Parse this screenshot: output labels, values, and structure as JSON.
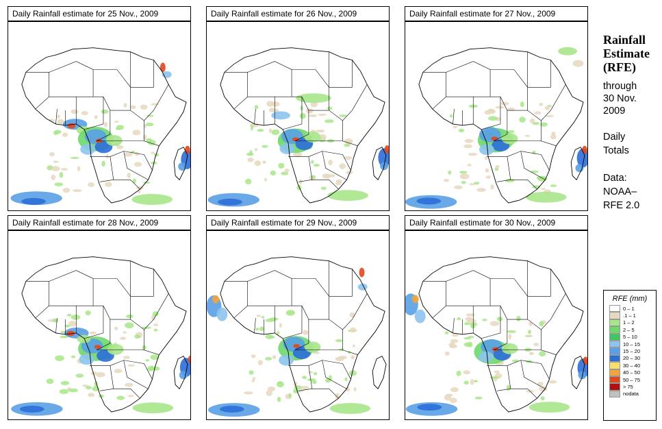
{
  "panels": [
    {
      "title": "Daily Rainfall estimate for  25 Nov., 2009",
      "hot": [
        "sahel-south",
        "congo",
        "madagascar-east",
        "southern-ocean",
        "red-sea"
      ]
    },
    {
      "title": "Daily Rainfall estimate for  26 Nov., 2009",
      "hot": [
        "congo",
        "madagascar-east",
        "southern-ocean",
        "sahel"
      ]
    },
    {
      "title": "Daily Rainfall estimate for  27 Nov., 2009",
      "hot": [
        "congo",
        "madagascar-east",
        "southern-ocean",
        "arabia"
      ]
    },
    {
      "title": "Daily Rainfall estimate for  28 Nov., 2009",
      "hot": [
        "congo",
        "madagascar-east",
        "southern-ocean",
        "sahel-south"
      ]
    },
    {
      "title": "Daily Rainfall estimate for  29 Nov., 2009",
      "hot": [
        "congo",
        "southern-ocean",
        "west-coast",
        "red-sea"
      ]
    },
    {
      "title": "Daily Rainfall estimate for  30 Nov., 2009",
      "hot": [
        "congo",
        "madagascar-east",
        "southern-ocean",
        "west-coast"
      ]
    }
  ],
  "sidebar": {
    "title_lines": [
      "Rainfall",
      "Estimate",
      "(RFE)"
    ],
    "through": "through",
    "date_line1": "30 Nov.",
    "date_line2": "2009",
    "daily": "Daily",
    "totals": "Totals",
    "data_label": "Data:",
    "source1": "NOAA–",
    "source2": "RFE 2.0"
  },
  "legend": {
    "title": "RFE (mm)",
    "entries": [
      {
        "label": "0 – 1",
        "color": "#ffffff"
      },
      {
        "label": ".1 – 1",
        "color": "#e8d8c0"
      },
      {
        "label": "1 – 2",
        "color": "#a8e68a"
      },
      {
        "label": "2 – 5",
        "color": "#6ed86a"
      },
      {
        "label": "5 – 10",
        "color": "#3cc860"
      },
      {
        "label": "10 – 15",
        "color": "#8cc4ec"
      },
      {
        "label": "15 – 20",
        "color": "#5aa0e6"
      },
      {
        "label": "20 – 30",
        "color": "#2c6ed8"
      },
      {
        "label": "30 – 40",
        "color": "#f6e06a"
      },
      {
        "label": "40 – 50",
        "color": "#f3a43c"
      },
      {
        "label": "50 – 75",
        "color": "#e0481e"
      },
      {
        "label": "> 75",
        "color": "#b01010"
      },
      {
        "label": "nodata",
        "color": "#c0c0c0"
      }
    ]
  }
}
